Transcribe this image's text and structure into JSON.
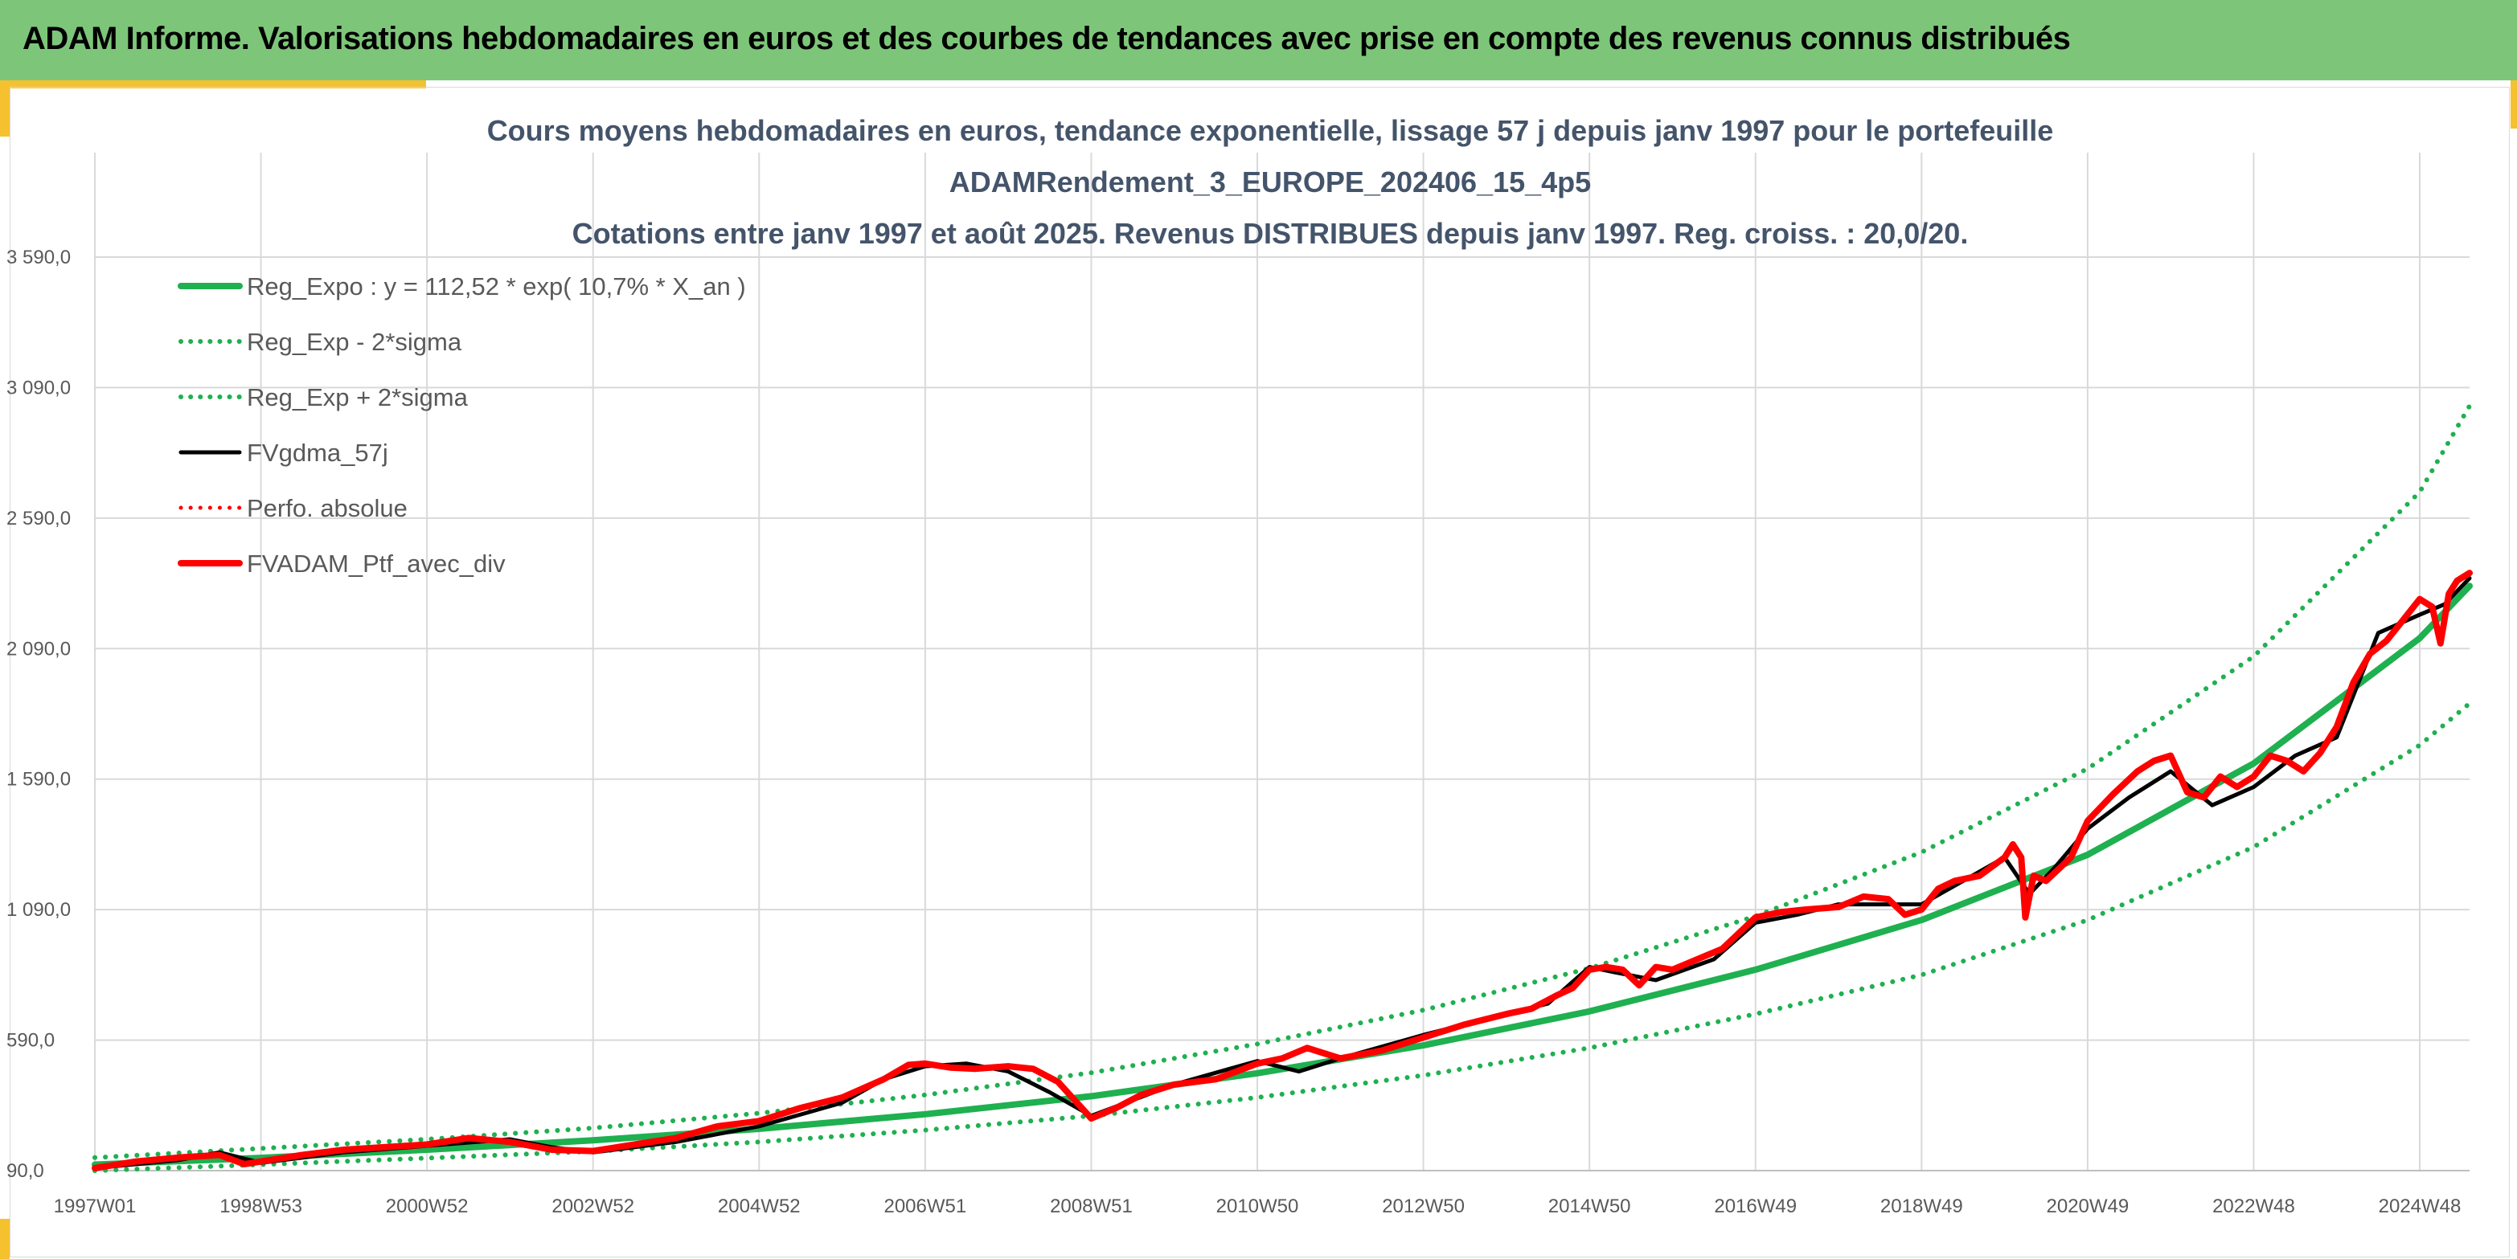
{
  "page": {
    "banner_title": "ADAM Informe. Valorisations hebdomadaires en euros et des courbes de tendances avec prise en compte des revenus connus distribués"
  },
  "colors": {
    "banner": "#7dc679",
    "accent": "#f5c12e",
    "trend": "#1fb050",
    "smooth": "#000000",
    "series": "#ff0000",
    "grid": "#d9d9d9"
  },
  "chart_data": {
    "type": "line",
    "title_lines": [
      "Cours moyens hebdomadaires en euros, tendance exponentielle, lissage 57 j depuis janv 1997 pour le portefeuille",
      "ADAMRendement_3_EUROPE_202406_15_4p5",
      "Cotations entre janv 1997 et août 2025. Revenus DISTRIBUES depuis janv 1997. Reg. croiss. : 20,0/20."
    ],
    "xlabel": "",
    "ylabel": "",
    "x_range": [
      1997.0,
      2025.6
    ],
    "ylim": [
      90,
      3590
    ],
    "grid": true,
    "legend_position": "top-left",
    "y_ticks": [
      {
        "value": 90,
        "label": "90,0"
      },
      {
        "value": 590,
        "label": "590,0"
      },
      {
        "value": 1090,
        "label": "1 090,0"
      },
      {
        "value": 1590,
        "label": "1 590,0"
      },
      {
        "value": 2090,
        "label": "2 090,0"
      },
      {
        "value": 2590,
        "label": "2 590,0"
      },
      {
        "value": 3090,
        "label": "3 090,0"
      },
      {
        "value": 3590,
        "label": "3 590,0"
      }
    ],
    "x_ticks": [
      {
        "value": 1997.0,
        "label": "1997W01"
      },
      {
        "value": 1999.0,
        "label": "1998W53"
      },
      {
        "value": 2001.0,
        "label": "2000W52"
      },
      {
        "value": 2003.0,
        "label": "2002W52"
      },
      {
        "value": 2005.0,
        "label": "2004W52"
      },
      {
        "value": 2007.0,
        "label": "2006W51"
      },
      {
        "value": 2009.0,
        "label": "2008W51"
      },
      {
        "value": 2011.0,
        "label": "2010W50"
      },
      {
        "value": 2013.0,
        "label": "2012W50"
      },
      {
        "value": 2015.0,
        "label": "2014W50"
      },
      {
        "value": 2017.0,
        "label": "2016W49"
      },
      {
        "value": 2019.0,
        "label": "2018W49"
      },
      {
        "value": 2021.0,
        "label": "2020W49"
      },
      {
        "value": 2023.0,
        "label": "2022W48"
      },
      {
        "value": 2025.0,
        "label": "2024W48"
      }
    ],
    "legend": [
      {
        "name": "Reg_Expo : y = 112,52 * exp( 10,7% *  X_an )",
        "color": "#1fb050",
        "style": "solid",
        "width": 8
      },
      {
        "name": "Reg_Exp - 2*sigma",
        "color": "#1fb050",
        "style": "dotted",
        "width": 6
      },
      {
        "name": "Reg_Exp + 2*sigma",
        "color": "#1fb050",
        "style": "dotted",
        "width": 6
      },
      {
        "name": "FVgdma_57j",
        "color": "#000000",
        "style": "solid",
        "width": 5
      },
      {
        "name": "Perfo. absolue",
        "color": "#ff0000",
        "style": "dotted",
        "width": 5
      },
      {
        "name": "FVADAM_Ptf_avec_div",
        "color": "#ff0000",
        "style": "solid",
        "width": 8
      }
    ],
    "series": [
      {
        "name": "Reg_Expo : y = 112,52 * exp( 10,7% *  X_an )",
        "x": [
          1997.0,
          1999.0,
          2001.0,
          2003.0,
          2005.0,
          2007.0,
          2009.0,
          2011.0,
          2013.0,
          2015.0,
          2017.0,
          2019.0,
          2021.0,
          2023.0,
          2025.0,
          2025.6
        ],
        "values": [
          113,
          139,
          170,
          206,
          250,
          306,
          375,
          463,
          570,
          700,
          860,
          1050,
          1300,
          1650,
          2130,
          2330
        ]
      },
      {
        "name": "Reg_Exp - 2*sigma",
        "x": [
          1997.0,
          1999.0,
          2001.0,
          2003.0,
          2005.0,
          2007.0,
          2009.0,
          2011.0,
          2013.0,
          2015.0,
          2017.0,
          2019.0,
          2021.0,
          2023.0,
          2025.0,
          2025.6
        ],
        "values": [
          90,
          113,
          138,
          164,
          200,
          245,
          300,
          370,
          455,
          560,
          690,
          840,
          1050,
          1330,
          1720,
          1880
        ]
      },
      {
        "name": "Reg_Exp + 2*sigma",
        "x": [
          1997.0,
          1999.0,
          2001.0,
          2003.0,
          2005.0,
          2007.0,
          2009.0,
          2011.0,
          2013.0,
          2015.0,
          2017.0,
          2019.0,
          2021.0,
          2023.0,
          2025.0,
          2025.6
        ],
        "values": [
          140,
          175,
          210,
          253,
          310,
          380,
          465,
          575,
          705,
          865,
          1065,
          1310,
          1630,
          2060,
          2690,
          3020
        ]
      },
      {
        "name": "FVgdma_57j",
        "x": [
          1997.0,
          1998.0,
          1998.5,
          1999.0,
          2000.0,
          2001.0,
          2002.0,
          2002.5,
          2003.0,
          2004.0,
          2005.0,
          2006.0,
          2006.5,
          2007.0,
          2007.5,
          2008.0,
          2008.5,
          2009.0,
          2009.5,
          2010.0,
          2011.0,
          2011.5,
          2012.0,
          2013.0,
          2014.0,
          2014.5,
          2015.0,
          2015.3,
          2015.8,
          2016.5,
          2017.0,
          2017.5,
          2018.0,
          2018.5,
          2019.0,
          2019.5,
          2020.0,
          2020.3,
          2020.6,
          2021.0,
          2021.5,
          2022.0,
          2022.5,
          2023.0,
          2023.5,
          2024.0,
          2024.5,
          2025.0,
          2025.3,
          2025.6
        ],
        "values": [
          100,
          130,
          160,
          120,
          160,
          185,
          210,
          180,
          160,
          200,
          260,
          350,
          440,
          490,
          500,
          470,
          390,
          300,
          360,
          420,
          510,
          470,
          520,
          610,
          690,
          730,
          870,
          850,
          820,
          900,
          1040,
          1070,
          1110,
          1110,
          1110,
          1200,
          1290,
          1150,
          1250,
          1400,
          1520,
          1620,
          1490,
          1560,
          1680,
          1750,
          2150,
          2220,
          2260,
          2360
        ]
      },
      {
        "name": "Perfo. absolue",
        "x": [],
        "values": []
      },
      {
        "name": "FVADAM_Ptf_avec_div",
        "x": [
          1997.0,
          1997.5,
          1998.0,
          1998.5,
          1998.8,
          1999.0,
          1999.5,
          2000.0,
          2000.5,
          2001.0,
          2001.5,
          2002.0,
          2002.5,
          2003.0,
          2003.5,
          2004.0,
          2004.5,
          2005.0,
          2005.5,
          2006.0,
          2006.5,
          2006.8,
          2007.0,
          2007.3,
          2007.6,
          2008.0,
          2008.3,
          2008.6,
          2008.8,
          2009.0,
          2009.3,
          2009.6,
          2010.0,
          2010.5,
          2011.0,
          2011.3,
          2011.6,
          2011.8,
          2012.0,
          2012.5,
          2013.0,
          2013.5,
          2014.0,
          2014.3,
          2014.6,
          2014.8,
          2015.0,
          2015.2,
          2015.4,
          2015.6,
          2015.8,
          2016.0,
          2016.3,
          2016.6,
          2016.8,
          2017.0,
          2017.3,
          2017.6,
          2018.0,
          2018.3,
          2018.6,
          2018.8,
          2019.0,
          2019.2,
          2019.4,
          2019.7,
          2020.0,
          2020.1,
          2020.2,
          2020.25,
          2020.35,
          2020.5,
          2020.8,
          2021.0,
          2021.3,
          2021.6,
          2021.8,
          2022.0,
          2022.2,
          2022.4,
          2022.6,
          2022.8,
          2023.0,
          2023.2,
          2023.4,
          2023.6,
          2023.8,
          2024.0,
          2024.2,
          2024.4,
          2024.6,
          2024.8,
          2025.0,
          2025.15,
          2025.25,
          2025.35,
          2025.45,
          2025.6
        ],
        "values": [
          100,
          125,
          140,
          150,
          115,
          125,
          150,
          170,
          180,
          190,
          215,
          200,
          170,
          165,
          190,
          215,
          260,
          280,
          330,
          370,
          440,
          495,
          500,
          485,
          480,
          490,
          480,
          430,
          360,
          290,
          330,
          380,
          420,
          440,
          500,
          520,
          560,
          540,
          520,
          550,
          600,
          650,
          690,
          710,
          760,
          790,
          860,
          870,
          860,
          800,
          870,
          860,
          900,
          940,
          1000,
          1060,
          1080,
          1090,
          1100,
          1140,
          1130,
          1070,
          1090,
          1170,
          1200,
          1220,
          1290,
          1340,
          1290,
          1060,
          1220,
          1200,
          1290,
          1430,
          1530,
          1620,
          1660,
          1680,
          1540,
          1520,
          1600,
          1560,
          1600,
          1680,
          1660,
          1620,
          1690,
          1790,
          1960,
          2070,
          2120,
          2200,
          2280,
          2250,
          2110,
          2300,
          2350,
          2380
        ]
      }
    ]
  }
}
